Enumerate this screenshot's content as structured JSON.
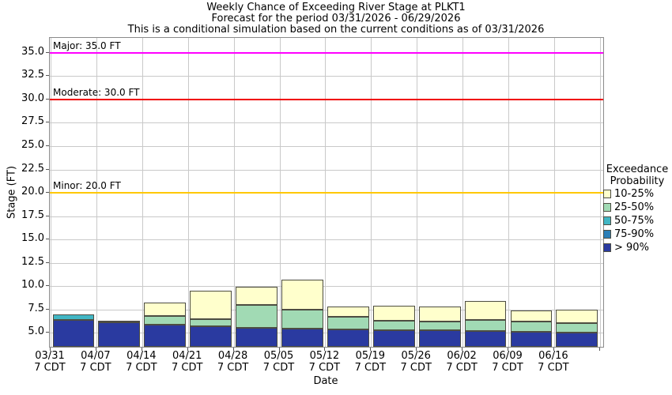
{
  "header": {
    "line1": "Weekly Chance of Exceeding River Stage at PLKT1",
    "line2": "Forecast for the period 03/31/2026 - 06/29/2026",
    "line3": "This is a conditional simulation based on the current conditions as of 03/31/2026"
  },
  "chart_data": {
    "type": "bar",
    "stacked": true,
    "title": "Weekly Chance of Exceeding River Stage at PLKT1",
    "xlabel": "Date",
    "ylabel": "Stage (FT)",
    "ylim": [
      3.5,
      36.6
    ],
    "yticks": [
      5.0,
      7.5,
      10.0,
      12.5,
      15.0,
      17.5,
      20.0,
      22.5,
      25.0,
      27.5,
      30.0,
      32.5,
      35.0
    ],
    "grid": true,
    "x_sublabel": "7 CDT",
    "bands": [
      {
        "key": "p10",
        "label": "10-25%",
        "color": "#ffffcc"
      },
      {
        "key": "p25",
        "label": "25-50%",
        "color": "#a1dab4"
      },
      {
        "key": "p50",
        "label": "50-75%",
        "color": "#41b6c4"
      },
      {
        "key": "p75",
        "label": "75-90%",
        "color": "#2c7fb8"
      },
      {
        "key": "p90",
        "label": "> 90%",
        "color": "#2a3aa0"
      }
    ],
    "legend": {
      "position": "right",
      "title_line1": "Exceedance",
      "title_line2": "Probability"
    },
    "reference_lines": [
      {
        "name": "major",
        "label": "Major: 35.0 FT",
        "value": 35.0,
        "color": "#ff00ff"
      },
      {
        "name": "moderate",
        "label": "Moderate: 30.0 FT",
        "value": 30.0,
        "color": "#f00000"
      },
      {
        "name": "minor",
        "label": "Minor: 20.0 FT",
        "value": 20.0,
        "color": "#ffc800"
      }
    ],
    "bars": [
      {
        "date": "03/31",
        "time": "7 CDT",
        "segments": [
          {
            "band": "p90",
            "top": 6.4
          },
          {
            "band": "p50",
            "top": 7.0
          }
        ]
      },
      {
        "date": "04/07",
        "time": "7 CDT",
        "segments": [
          {
            "band": "p90",
            "top": 6.1
          },
          {
            "band": "p50",
            "top": 6.2
          },
          {
            "band": "p25",
            "top": 6.3
          }
        ]
      },
      {
        "date": "04/14",
        "time": "7 CDT",
        "segments": [
          {
            "band": "p90",
            "top": 5.9
          },
          {
            "band": "p25",
            "top": 6.8
          },
          {
            "band": "p10",
            "top": 8.2
          }
        ]
      },
      {
        "date": "04/21",
        "time": "7 CDT",
        "segments": [
          {
            "band": "p90",
            "top": 5.7
          },
          {
            "band": "p25",
            "top": 6.5
          },
          {
            "band": "p10",
            "top": 9.5
          }
        ]
      },
      {
        "date": "04/28",
        "time": "7 CDT",
        "segments": [
          {
            "band": "p90",
            "top": 5.55
          },
          {
            "band": "p25",
            "top": 8.0
          },
          {
            "band": "p10",
            "top": 9.9
          }
        ]
      },
      {
        "date": "05/05",
        "time": "7 CDT",
        "segments": [
          {
            "band": "p90",
            "top": 5.45
          },
          {
            "band": "p25",
            "top": 7.5
          },
          {
            "band": "p10",
            "top": 10.7
          }
        ]
      },
      {
        "date": "05/12",
        "time": "7 CDT",
        "segments": [
          {
            "band": "p90",
            "top": 5.4
          },
          {
            "band": "p25",
            "top": 6.7
          },
          {
            "band": "p10",
            "top": 7.8
          }
        ]
      },
      {
        "date": "05/19",
        "time": "7 CDT",
        "segments": [
          {
            "band": "p90",
            "top": 5.3
          },
          {
            "band": "p25",
            "top": 6.3
          },
          {
            "band": "p10",
            "top": 7.9
          }
        ]
      },
      {
        "date": "05/26",
        "time": "7 CDT",
        "segments": [
          {
            "band": "p90",
            "top": 5.25
          },
          {
            "band": "p25",
            "top": 6.25
          },
          {
            "band": "p10",
            "top": 7.8
          }
        ]
      },
      {
        "date": "06/02",
        "time": "7 CDT",
        "segments": [
          {
            "band": "p90",
            "top": 5.2
          },
          {
            "band": "p25",
            "top": 6.4
          },
          {
            "band": "p10",
            "top": 8.4
          }
        ]
      },
      {
        "date": "06/09",
        "time": "7 CDT",
        "segments": [
          {
            "band": "p90",
            "top": 5.1
          },
          {
            "band": "p25",
            "top": 6.2
          },
          {
            "band": "p10",
            "top": 7.4
          }
        ]
      },
      {
        "date": "06/16",
        "time": "7 CDT",
        "segments": [
          {
            "band": "p90",
            "top": 5.0
          },
          {
            "band": "p25",
            "top": 6.0
          },
          {
            "band": "p10",
            "top": 7.5
          }
        ]
      }
    ]
  }
}
